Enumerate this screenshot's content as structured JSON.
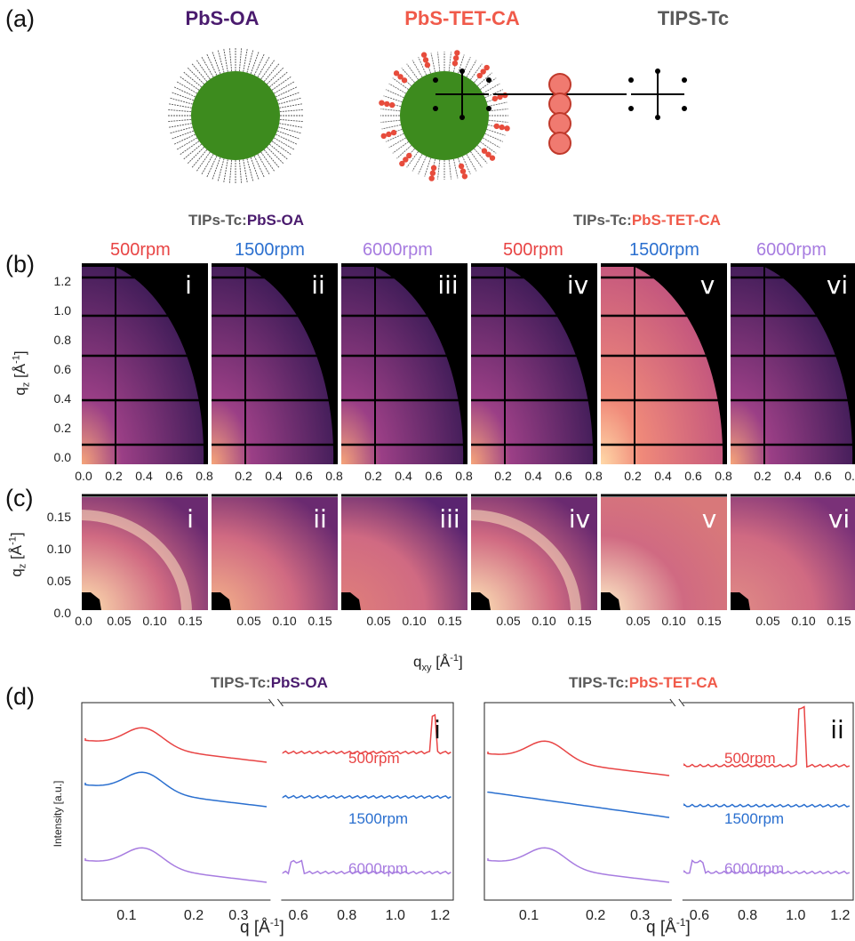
{
  "panels": {
    "a": "(a)",
    "b": "(b)",
    "c": "(c)",
    "d": "(d)"
  },
  "a": {
    "titles": [
      "PbS-OA",
      "PbS-TET-CA",
      "TIPS-Tc"
    ]
  },
  "b": {
    "groups": [
      {
        "prefix": "TIPs-Tc:",
        "name": "PbS-OA"
      },
      {
        "prefix": "TIPs-Tc:",
        "name": "PbS-TET-CA"
      }
    ],
    "rpm": [
      "500rpm",
      "1500rpm",
      "6000rpm",
      "500rpm",
      "1500rpm",
      "6000rpm"
    ],
    "roman": [
      "i",
      "ii",
      "iii",
      "iv",
      "v",
      "vi"
    ],
    "yticks": [
      "1.2",
      "1.0",
      "0.8",
      "0.6",
      "0.4",
      "0.2",
      "0.0"
    ],
    "xticks_first": [
      "0.0",
      "0.2",
      "0.4",
      "0.6",
      "0.8"
    ],
    "xticks": [
      "0.2",
      "0.4",
      "0.6",
      "0.8"
    ],
    "ylabel": "q",
    "ylabel_sub": "z",
    "ylabel_unit": "[Å",
    "ylabel_sup": "-1",
    "ylabel_end": "]"
  },
  "c": {
    "roman": [
      "i",
      "ii",
      "iii",
      "iv",
      "v",
      "vi"
    ],
    "yticks": [
      "0.15",
      "0.10",
      "0.05",
      "0.0"
    ],
    "xticks_first": [
      "0.0",
      "0.05",
      "0.10",
      "0.15"
    ],
    "xticks": [
      "0.05",
      "0.10",
      "0.15"
    ],
    "xlabel": "q",
    "xlabel_sub": "xy",
    "xlabel_unit": "[Å",
    "xlabel_sup": "-1",
    "xlabel_end": "]"
  },
  "d": {
    "groups": [
      {
        "prefix": "TIPS-Tc:",
        "name": "PbS-OA",
        "roman": "i"
      },
      {
        "prefix": "TIPS-Tc:",
        "name": "PbS-TET-CA",
        "roman": "ii"
      }
    ],
    "series": [
      "500rpm",
      "1500rpm",
      "6000rpm"
    ],
    "ylabel": "Intensity [a.u.]",
    "xticks": [
      "0.1",
      "0.2",
      "0.3",
      "0.6",
      "0.8",
      "1.0",
      "1.2"
    ],
    "xlabel": "q [Å",
    "xlabel_sup": "-1",
    "xlabel_end": "]"
  },
  "colors": {
    "oa": "#4a1b6e",
    "tet": "#f05a4a",
    "grey": "#5a5a5a",
    "red": "#e84444",
    "blue": "#2a6fcf",
    "purple": "#a77ce0",
    "np": "#3d8b1e"
  }
}
